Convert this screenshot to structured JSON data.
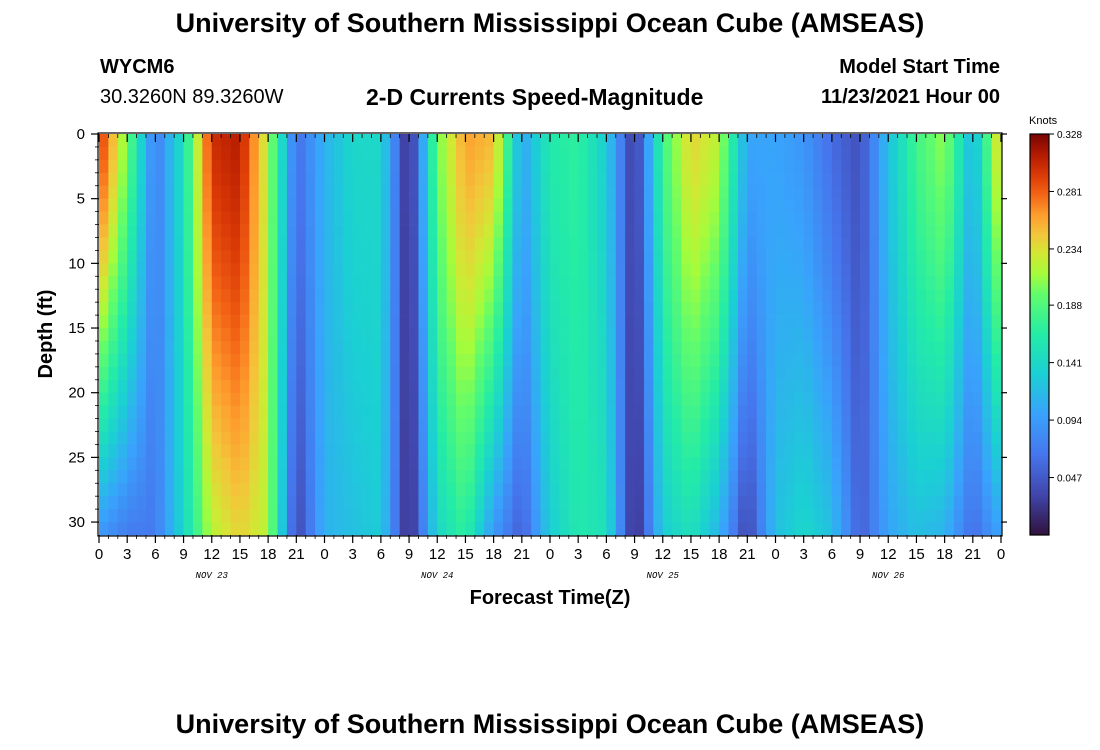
{
  "header": {
    "title": "University of Southern Mississippi Ocean Cube (AMSEAS)",
    "station": "WYCM6",
    "coords": "30.3260N  89.3260W",
    "subtitle": "2-D Currents Speed-Magnitude",
    "model_start_label": "Model Start Time",
    "model_start_value": "11/23/2021 Hour 00"
  },
  "footer": {
    "title": "University of Southern Mississippi Ocean Cube (AMSEAS)"
  },
  "chart_data": {
    "type": "heatmap",
    "title": "2-D Currents Speed-Magnitude",
    "xlabel": "Forecast Time(Z)",
    "ylabel": "Depth (ft)",
    "x_tick_labels": [
      "0",
      "3",
      "6",
      "9",
      "12",
      "15",
      "18",
      "21",
      "0",
      "3",
      "6",
      "9",
      "12",
      "15",
      "18",
      "21",
      "0",
      "3",
      "6",
      "9",
      "12",
      "15",
      "18",
      "21",
      "0",
      "3",
      "6",
      "9",
      "12",
      "15",
      "18",
      "21",
      "0"
    ],
    "x_range_hours": [
      0,
      96
    ],
    "day_labels": [
      {
        "label": "NOV 23",
        "hour": 12
      },
      {
        "label": "NOV 24",
        "hour": 36
      },
      {
        "label": "NOV 25",
        "hour": 60
      },
      {
        "label": "NOV 26",
        "hour": 84
      }
    ],
    "y_ticks": [
      "0",
      "5",
      "10",
      "15",
      "20",
      "25",
      "30"
    ],
    "ylim_ft": [
      0,
      31
    ],
    "colorbar": {
      "unit": "Knots",
      "ticks": [
        "0.328",
        "0.281",
        "0.234",
        "0.188",
        "0.141",
        "0.094",
        "0.047"
      ],
      "range": [
        0.0,
        0.328
      ]
    },
    "surface_speed_by_hour": [
      {
        "hour": 0,
        "value": 0.3
      },
      {
        "hour": 3,
        "value": 0.2
      },
      {
        "hour": 6,
        "value": 0.07
      },
      {
        "hour": 9,
        "value": 0.15
      },
      {
        "hour": 12,
        "value": 0.3
      },
      {
        "hour": 15,
        "value": 0.31
      },
      {
        "hour": 18,
        "value": 0.22
      },
      {
        "hour": 21,
        "value": 0.06
      },
      {
        "hour": 24,
        "value": 0.11
      },
      {
        "hour": 27,
        "value": 0.14
      },
      {
        "hour": 30,
        "value": 0.14
      },
      {
        "hour": 33,
        "value": 0.01
      },
      {
        "hour": 36,
        "value": 0.2
      },
      {
        "hour": 39,
        "value": 0.26
      },
      {
        "hour": 42,
        "value": 0.25
      },
      {
        "hour": 45,
        "value": 0.1
      },
      {
        "hour": 48,
        "value": 0.16
      },
      {
        "hour": 51,
        "value": 0.17
      },
      {
        "hour": 54,
        "value": 0.13
      },
      {
        "hour": 57,
        "value": 0.02
      },
      {
        "hour": 60,
        "value": 0.18
      },
      {
        "hour": 63,
        "value": 0.24
      },
      {
        "hour": 66,
        "value": 0.22
      },
      {
        "hour": 69,
        "value": 0.1
      },
      {
        "hour": 72,
        "value": 0.1
      },
      {
        "hour": 75,
        "value": 0.09
      },
      {
        "hour": 78,
        "value": 0.06
      },
      {
        "hour": 81,
        "value": 0.04
      },
      {
        "hour": 84,
        "value": 0.12
      },
      {
        "hour": 87,
        "value": 0.18
      },
      {
        "hour": 90,
        "value": 0.21
      },
      {
        "hour": 93,
        "value": 0.11
      },
      {
        "hour": 96,
        "value": 0.25
      }
    ],
    "bottom_speed_by_hour": [
      {
        "hour": 0,
        "value": 0.09
      },
      {
        "hour": 3,
        "value": 0.07
      },
      {
        "hour": 6,
        "value": 0.07
      },
      {
        "hour": 9,
        "value": 0.14
      },
      {
        "hour": 12,
        "value": 0.22
      },
      {
        "hour": 15,
        "value": 0.24
      },
      {
        "hour": 18,
        "value": 0.22
      },
      {
        "hour": 21,
        "value": 0.03
      },
      {
        "hour": 24,
        "value": 0.11
      },
      {
        "hour": 27,
        "value": 0.12
      },
      {
        "hour": 30,
        "value": 0.13
      },
      {
        "hour": 33,
        "value": 0.01
      },
      {
        "hour": 36,
        "value": 0.14
      },
      {
        "hour": 39,
        "value": 0.17
      },
      {
        "hour": 42,
        "value": 0.09
      },
      {
        "hour": 45,
        "value": 0.05
      },
      {
        "hour": 48,
        "value": 0.13
      },
      {
        "hour": 51,
        "value": 0.16
      },
      {
        "hour": 54,
        "value": 0.15
      },
      {
        "hour": 57,
        "value": 0.01
      },
      {
        "hour": 60,
        "value": 0.13
      },
      {
        "hour": 63,
        "value": 0.15
      },
      {
        "hour": 66,
        "value": 0.11
      },
      {
        "hour": 69,
        "value": 0.03
      },
      {
        "hour": 72,
        "value": 0.12
      },
      {
        "hour": 75,
        "value": 0.14
      },
      {
        "hour": 78,
        "value": 0.12
      },
      {
        "hour": 81,
        "value": 0.05
      },
      {
        "hour": 84,
        "value": 0.1
      },
      {
        "hour": 87,
        "value": 0.12
      },
      {
        "hour": 90,
        "value": 0.11
      },
      {
        "hour": 93,
        "value": 0.06
      },
      {
        "hour": 96,
        "value": 0.1
      }
    ]
  }
}
